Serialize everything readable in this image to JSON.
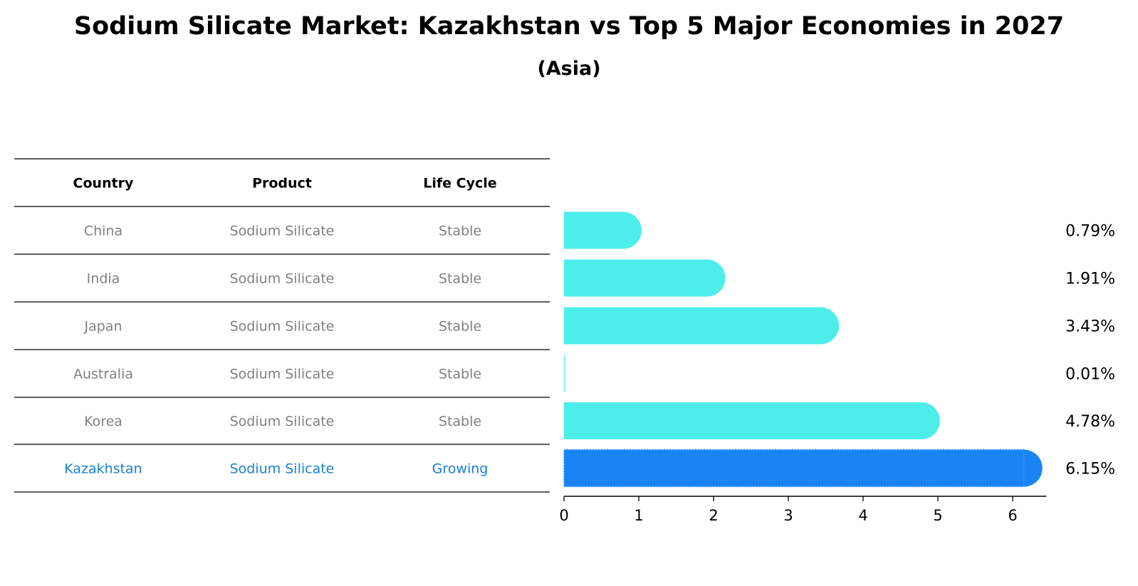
{
  "title": "Sodium Silicate Market: Kazakhstan vs Top 5 Major Economies in 2027",
  "subtitle": "(Asia)",
  "table": {
    "headers": [
      "Country",
      "Product",
      "Life Cycle"
    ],
    "rows": [
      {
        "country": "China",
        "product": "Sodium Silicate",
        "life_cycle": "Stable",
        "highlight": false
      },
      {
        "country": "India",
        "product": "Sodium Silicate",
        "life_cycle": "Stable",
        "highlight": false
      },
      {
        "country": "Japan",
        "product": "Sodium Silicate",
        "life_cycle": "Stable",
        "highlight": false
      },
      {
        "country": "Australia",
        "product": "Sodium Silicate",
        "life_cycle": "Stable",
        "highlight": false
      },
      {
        "country": "Korea",
        "product": "Sodium Silicate",
        "life_cycle": "Stable",
        "highlight": false
      },
      {
        "country": "Kazakhstan",
        "product": "Sodium Silicate",
        "life_cycle": "Growing",
        "highlight": true
      }
    ]
  },
  "colors": {
    "bar": "#4deeea",
    "highlight_bar": "#1a84f5",
    "highlight_text": "#1a7fd0",
    "table_text": "#808080",
    "line": "#000000"
  },
  "chart_data": {
    "type": "bar",
    "orientation": "horizontal",
    "categories": [
      "China",
      "India",
      "Japan",
      "Australia",
      "Korea",
      "Kazakhstan"
    ],
    "values": [
      0.79,
      1.91,
      3.43,
      0.01,
      4.78,
      6.15
    ],
    "value_labels": [
      "0.79%",
      "1.91%",
      "3.43%",
      "0.01%",
      "4.78%",
      "6.15%"
    ],
    "xticks": [
      0,
      1,
      2,
      3,
      4,
      5,
      6
    ],
    "xlim": [
      0,
      6.45
    ],
    "title": "Sodium Silicate Market: Kazakhstan vs Top 5 Major Economies in 2027",
    "subtitle": "(Asia)",
    "xlabel": "",
    "ylabel": "",
    "grid": false,
    "legend": "none"
  }
}
